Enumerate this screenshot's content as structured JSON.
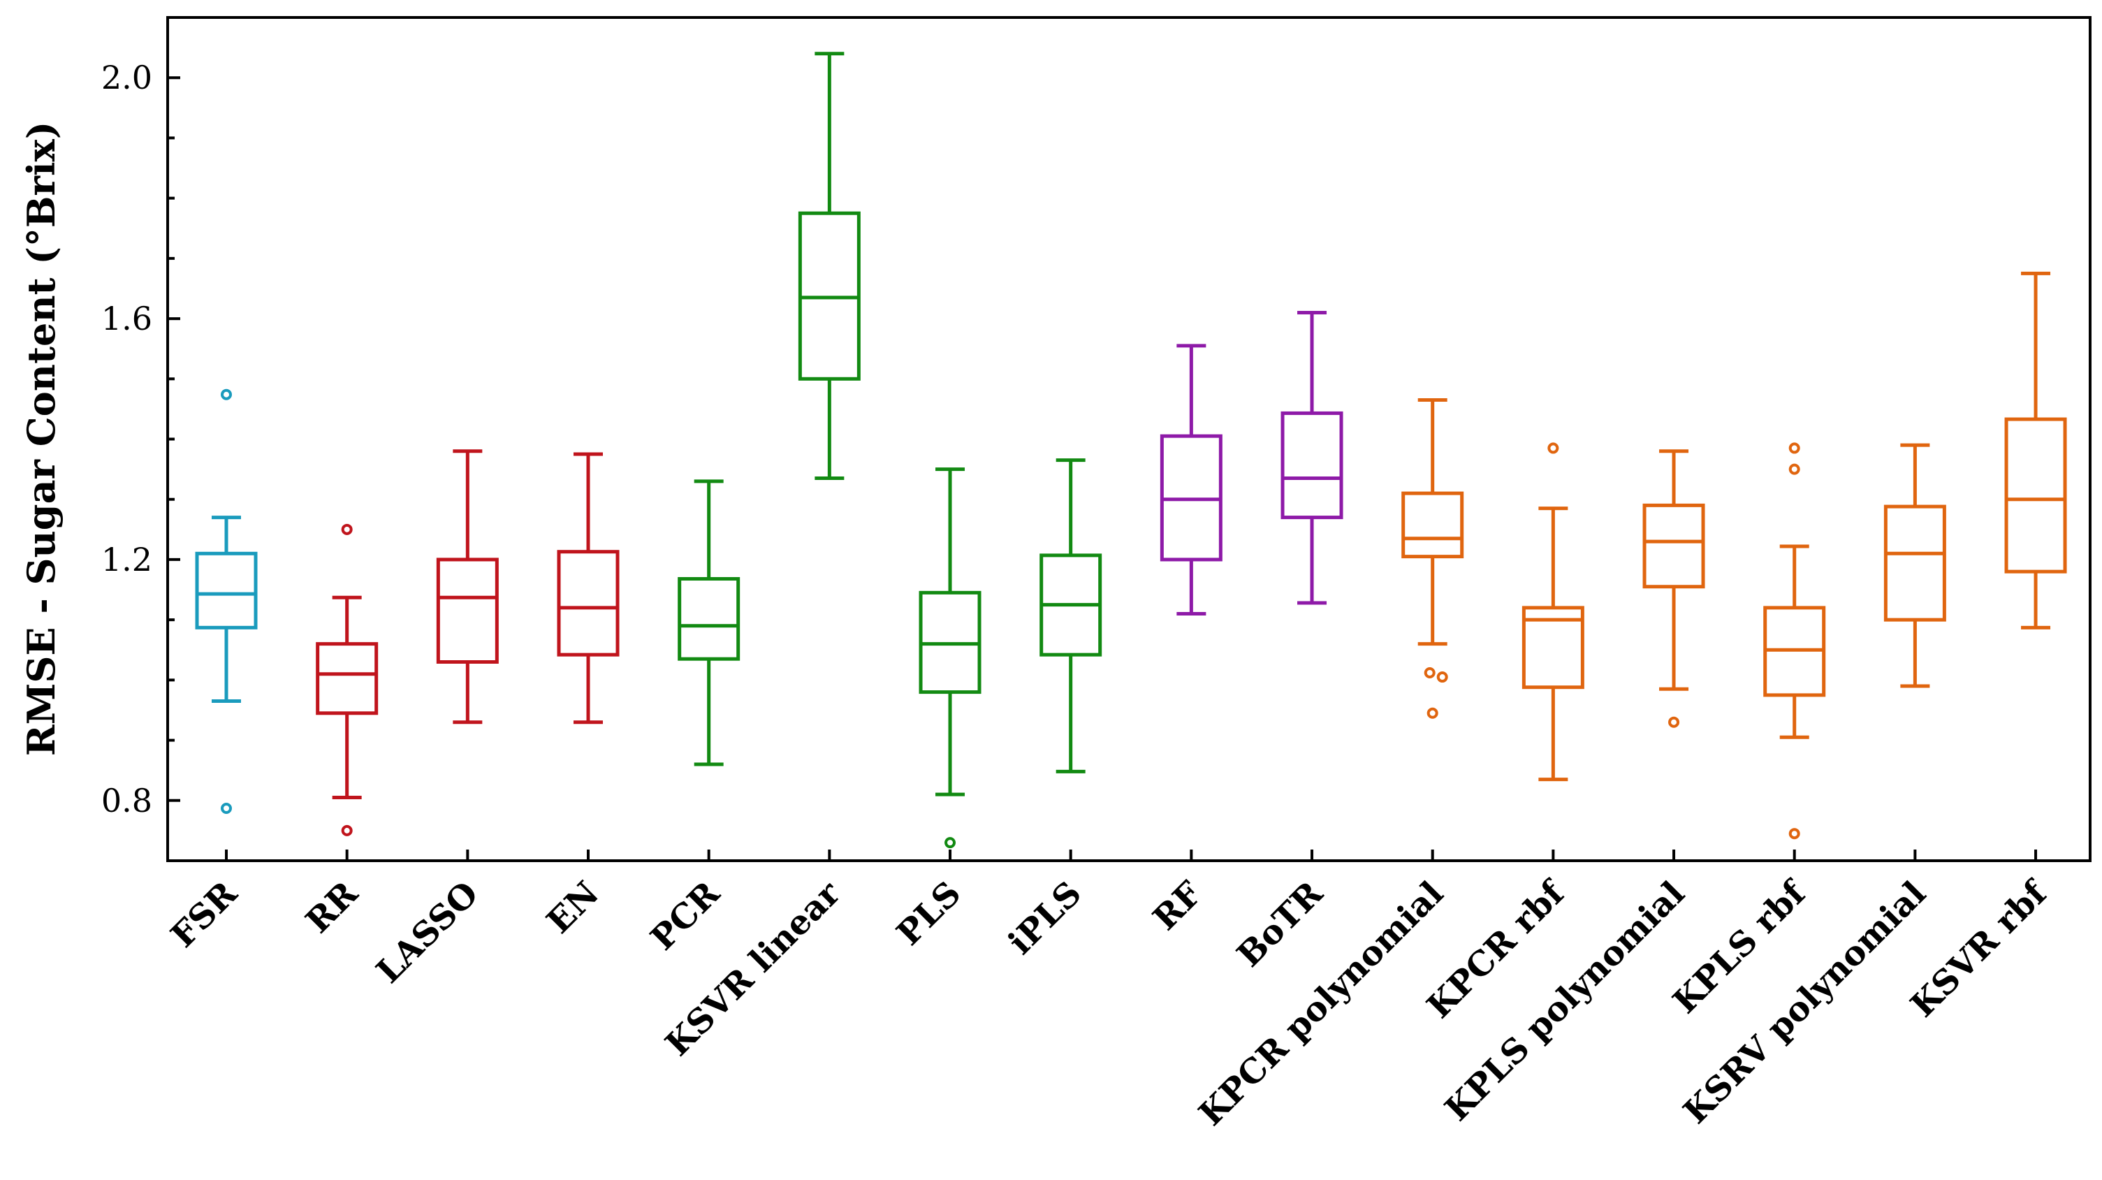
{
  "chart_data": {
    "type": "box",
    "title": "",
    "xlabel": "",
    "ylabel": "RMSE - Sugar Content (°Brix)",
    "ylim": [
      0.7,
      2.1
    ],
    "yticks": [
      0.8,
      1.2,
      1.6,
      2.0
    ],
    "ytick_labels": [
      "0.8",
      "1.2",
      "1.6",
      "2.0"
    ],
    "grid": false,
    "categories": [
      "FSR",
      "RR",
      "LASSO",
      "EN",
      "PCR",
      "KSVR linear",
      "PLS",
      "iPLS",
      "RF",
      "BoTR",
      "KPCR polynomial",
      "KPCR rbf",
      "KPLS polynomial",
      "KPLS rbf",
      "KSRV polynomial",
      "KSVR rbf"
    ],
    "colors": [
      "#1a9bbd",
      "#c0141c",
      "#c0141c",
      "#c0141c",
      "#128a12",
      "#128a12",
      "#128a12",
      "#128a12",
      "#8e1aa8",
      "#8e1aa8",
      "#e0650f",
      "#e0650f",
      "#e0650f",
      "#e0650f",
      "#e0650f",
      "#e0650f"
    ],
    "boxes": [
      {
        "whislo": 0.965,
        "q1": 1.087,
        "med": 1.143,
        "q3": 1.21,
        "whishi": 1.27,
        "fliers": [
          1.474,
          0.787
        ]
      },
      {
        "whislo": 0.805,
        "q1": 0.945,
        "med": 1.01,
        "q3": 1.06,
        "whishi": 1.137,
        "fliers": [
          1.25,
          0.75
        ]
      },
      {
        "whislo": 0.93,
        "q1": 1.03,
        "med": 1.137,
        "q3": 1.2,
        "whishi": 1.38,
        "fliers": []
      },
      {
        "whislo": 0.93,
        "q1": 1.042,
        "med": 1.12,
        "q3": 1.213,
        "whishi": 1.375,
        "fliers": []
      },
      {
        "whislo": 0.86,
        "q1": 1.035,
        "med": 1.09,
        "q3": 1.168,
        "whishi": 1.33,
        "fliers": []
      },
      {
        "whislo": 1.335,
        "q1": 1.5,
        "med": 1.635,
        "q3": 1.775,
        "whishi": 2.04,
        "fliers": []
      },
      {
        "whislo": 0.81,
        "q1": 0.98,
        "med": 1.06,
        "q3": 1.145,
        "whishi": 1.35,
        "fliers": [
          0.73
        ]
      },
      {
        "whislo": 0.848,
        "q1": 1.042,
        "med": 1.125,
        "q3": 1.207,
        "whishi": 1.365,
        "fliers": []
      },
      {
        "whislo": 1.11,
        "q1": 1.2,
        "med": 1.3,
        "q3": 1.405,
        "whishi": 1.555,
        "fliers": []
      },
      {
        "whislo": 1.128,
        "q1": 1.27,
        "med": 1.335,
        "q3": 1.443,
        "whishi": 1.61,
        "fliers": []
      },
      {
        "whislo": 1.06,
        "q1": 1.205,
        "med": 1.235,
        "q3": 1.31,
        "whishi": 1.465,
        "fliers": [
          1.012,
          1.005,
          0.945
        ]
      },
      {
        "whislo": 0.835,
        "q1": 0.988,
        "med": 1.1,
        "q3": 1.12,
        "whishi": 1.285,
        "fliers": [
          1.385
        ]
      },
      {
        "whislo": 0.985,
        "q1": 1.155,
        "med": 1.23,
        "q3": 1.29,
        "whishi": 1.38,
        "fliers": [
          0.93
        ]
      },
      {
        "whislo": 0.905,
        "q1": 0.975,
        "med": 1.05,
        "q3": 1.12,
        "whishi": 1.222,
        "fliers": [
          1.385,
          1.35,
          0.745
        ]
      },
      {
        "whislo": 0.99,
        "q1": 1.1,
        "med": 1.21,
        "q3": 1.288,
        "whishi": 1.39,
        "fliers": []
      },
      {
        "whislo": 1.087,
        "q1": 1.18,
        "med": 1.3,
        "q3": 1.433,
        "whishi": 1.675,
        "fliers": []
      }
    ]
  }
}
